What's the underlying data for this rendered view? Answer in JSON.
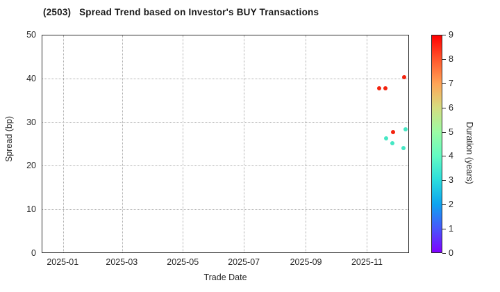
{
  "chart_data": {
    "type": "scatter",
    "title": "(2503)   Spread Trend based on Investor's BUY Transactions",
    "xlabel": "Trade Date",
    "ylabel": "Spread (bp)",
    "grid": true,
    "legend": "colorbar-right",
    "x_axis": {
      "min": "2024-12-11",
      "max": "2025-12-13",
      "ticks": [
        {
          "date": "2025-01-01",
          "label": "2025-01"
        },
        {
          "date": "2025-03-01",
          "label": "2025-03"
        },
        {
          "date": "2025-05-01",
          "label": "2025-05"
        },
        {
          "date": "2025-07-01",
          "label": "2025-07"
        },
        {
          "date": "2025-09-01",
          "label": "2025-09"
        },
        {
          "date": "2025-11-01",
          "label": "2025-11"
        }
      ]
    },
    "y_axis": {
      "min": 0,
      "max": 50,
      "ticks": [
        0,
        10,
        20,
        30,
        40,
        50
      ]
    },
    "points": [
      {
        "date": "2025-11-14",
        "spread_bp": 37.8,
        "duration_years": 9.0,
        "color": "#f3230e"
      },
      {
        "date": "2025-11-20",
        "spread_bp": 37.8,
        "duration_years": 9.0,
        "color": "#f3230e"
      },
      {
        "date": "2025-12-09",
        "spread_bp": 40.4,
        "duration_years": 9.0,
        "color": "#f3230e"
      },
      {
        "date": "2025-11-28",
        "spread_bp": 27.7,
        "duration_years": 9.0,
        "color": "#f3230e"
      },
      {
        "date": "2025-12-10",
        "spread_bp": 28.4,
        "duration_years": 4.0,
        "color": "#45e7c4"
      },
      {
        "date": "2025-11-21",
        "spread_bp": 26.3,
        "duration_years": 4.0,
        "color": "#45e7c4"
      },
      {
        "date": "2025-11-27",
        "spread_bp": 25.1,
        "duration_years": 4.0,
        "color": "#45e7c4"
      },
      {
        "date": "2025-12-08",
        "spread_bp": 24.1,
        "duration_years": 4.0,
        "color": "#45e7c4"
      }
    ],
    "colorbar": {
      "label": "Duration (years)",
      "min": 0,
      "max": 9,
      "ticks": [
        0,
        1,
        2,
        3,
        4,
        5,
        6,
        7,
        8,
        9
      ],
      "gradient": [
        {
          "value": 0,
          "color": "#8000ff"
        },
        {
          "value": 1,
          "color": "#4757fb"
        },
        {
          "value": 2,
          "color": "#0ea4f0"
        },
        {
          "value": 3,
          "color": "#2bdddd"
        },
        {
          "value": 4,
          "color": "#63fbc3"
        },
        {
          "value": 5,
          "color": "#9cfba4"
        },
        {
          "value": 6,
          "color": "#d5dd80"
        },
        {
          "value": 7,
          "color": "#ffa457"
        },
        {
          "value": 8,
          "color": "#ff572c"
        },
        {
          "value": 9,
          "color": "#ff0000"
        }
      ]
    }
  }
}
